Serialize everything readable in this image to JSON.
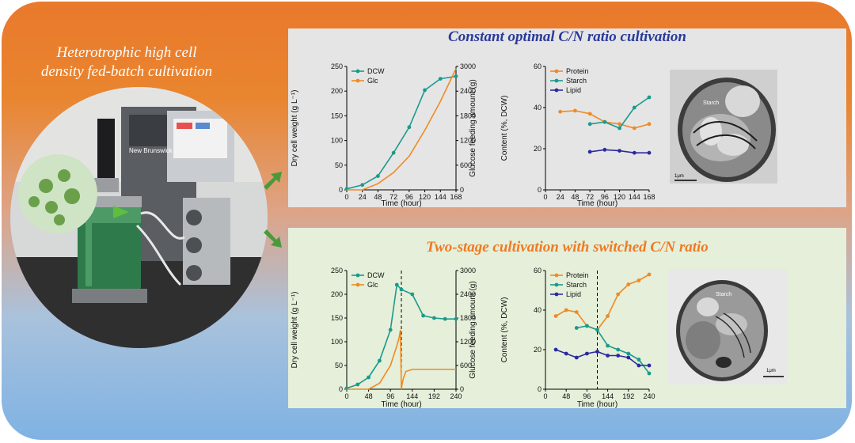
{
  "left_title": {
    "line1": "Heterotrophic high cell",
    "line2": "density fed-batch cultivation"
  },
  "photo": {
    "brand": "New Brunswick"
  },
  "top_panel": {
    "title": "Constant optimal C/N ratio cultivation",
    "micrograph": {
      "label": "Starch",
      "scale": "1μm"
    }
  },
  "bottom_panel": {
    "title": "Two-stage cultivation with switched C/N ratio",
    "micrograph": {
      "label": "Starch",
      "scale": "1μm"
    }
  },
  "colors": {
    "dcw": "#1b9a8c",
    "glc": "#f08a24",
    "protein": "#f08a24",
    "starch": "#1b9a8c",
    "lipid": "#2a2aa0",
    "title_blue": "#2a3a9a",
    "title_orange": "#ef7a22",
    "arrow": "#4a9a3c"
  },
  "chart_data": [
    {
      "id": "top-growth",
      "type": "line",
      "xlabel": "Time (hour)",
      "ylabel": "Dry cell weight (g L⁻¹)",
      "y2label": "Glucose feeding amount (g)",
      "xticks": [
        "0",
        "24",
        "48",
        "72",
        "96",
        "120",
        "144",
        "168"
      ],
      "xlim": [
        0,
        168
      ],
      "yticks": [
        "0",
        "50",
        "100",
        "150",
        "200",
        "250"
      ],
      "ylim": [
        0,
        250
      ],
      "y2ticks": [
        "0",
        "600",
        "1200",
        "1800",
        "2400",
        "3000"
      ],
      "y2lim": [
        0,
        3000
      ],
      "series": [
        {
          "name": "DCW",
          "axis": "left",
          "marker": true,
          "x": [
            0,
            24,
            48,
            72,
            96,
            120,
            144,
            168
          ],
          "y": [
            2,
            10,
            28,
            75,
            127,
            202,
            225,
            230
          ]
        },
        {
          "name": "Glc",
          "axis": "right",
          "marker": false,
          "x": [
            0,
            24,
            48,
            72,
            96,
            120,
            144,
            168
          ],
          "y": [
            0,
            0,
            150,
            420,
            820,
            1450,
            2150,
            2950
          ]
        }
      ],
      "legend": [
        "DCW",
        "Glc"
      ]
    },
    {
      "id": "top-content",
      "type": "line",
      "xlabel": "Time (hour)",
      "ylabel": "Content (%, DCW)",
      "xticks": [
        "0",
        "24",
        "48",
        "72",
        "96",
        "120",
        "144",
        "168"
      ],
      "xlim": [
        0,
        168
      ],
      "yticks": [
        "0",
        "20",
        "40",
        "60"
      ],
      "ylim": [
        0,
        60
      ],
      "series": [
        {
          "name": "Protein",
          "x": [
            24,
            48,
            72,
            96,
            120,
            144,
            168
          ],
          "y": [
            38,
            38.5,
            37,
            33,
            32,
            30,
            32
          ]
        },
        {
          "name": "Starch",
          "x": [
            72,
            96,
            120,
            144,
            168
          ],
          "y": [
            32,
            33,
            30,
            40,
            45
          ]
        },
        {
          "name": "Lipid",
          "x": [
            72,
            96,
            120,
            144,
            168
          ],
          "y": [
            18.5,
            19.5,
            19,
            18,
            18
          ]
        }
      ],
      "legend": [
        "Protein",
        "Starch",
        "Lipid"
      ]
    },
    {
      "id": "bottom-growth",
      "type": "line",
      "xlabel": "Time (hour)",
      "ylabel": "Dry cell weight (g L⁻¹)",
      "y2label": "Glucose feeding amount (g)",
      "xticks": [
        "0",
        "48",
        "96",
        "144",
        "192",
        "240"
      ],
      "xlim": [
        0,
        240
      ],
      "yticks": [
        "0",
        "50",
        "100",
        "150",
        "200",
        "250"
      ],
      "ylim": [
        0,
        250
      ],
      "y2ticks": [
        "0",
        "600",
        "1200",
        "1800",
        "2400",
        "3000"
      ],
      "y2lim": [
        0,
        3000
      ],
      "switch_x": 120,
      "series": [
        {
          "name": "DCW",
          "axis": "left",
          "marker": true,
          "x": [
            0,
            24,
            48,
            72,
            96,
            110,
            120,
            144,
            168,
            192,
            216,
            240
          ],
          "y": [
            2,
            10,
            25,
            60,
            125,
            220,
            210,
            200,
            155,
            150,
            148,
            148
          ]
        },
        {
          "name": "Glc",
          "axis": "right",
          "marker": false,
          "x": [
            0,
            48,
            72,
            96,
            110,
            115,
            118,
            120,
            122,
            125,
            130,
            144,
            168,
            192,
            216,
            240
          ],
          "y": [
            0,
            0,
            150,
            600,
            1100,
            1300,
            1500,
            0,
            150,
            300,
            450,
            500,
            500,
            500,
            500,
            500
          ]
        }
      ],
      "legend": [
        "DCW",
        "Glc"
      ]
    },
    {
      "id": "bottom-content",
      "type": "line",
      "xlabel": "Time (hour)",
      "ylabel": "Content (%, DCW)",
      "xticks": [
        "0",
        "48",
        "96",
        "144",
        "192",
        "240"
      ],
      "xlim": [
        0,
        240
      ],
      "yticks": [
        "0",
        "20",
        "40",
        "60"
      ],
      "ylim": [
        0,
        60
      ],
      "switch_x": 120,
      "series": [
        {
          "name": "Protein",
          "x": [
            24,
            48,
            72,
            96,
            120,
            144,
            168,
            192,
            216,
            240
          ],
          "y": [
            37,
            40,
            39,
            32,
            30,
            37,
            48,
            53,
            55,
            58
          ]
        },
        {
          "name": "Starch",
          "x": [
            72,
            96,
            120,
            144,
            168,
            192,
            216,
            240
          ],
          "y": [
            31,
            32,
            30,
            22,
            20,
            18,
            15,
            8
          ]
        },
        {
          "name": "Lipid",
          "x": [
            24,
            48,
            72,
            96,
            120,
            144,
            168,
            192,
            216,
            240
          ],
          "y": [
            20,
            18,
            16,
            18,
            19,
            17,
            17,
            16,
            12,
            12
          ]
        }
      ],
      "legend": [
        "Protein",
        "Starch",
        "Lipid"
      ]
    }
  ]
}
